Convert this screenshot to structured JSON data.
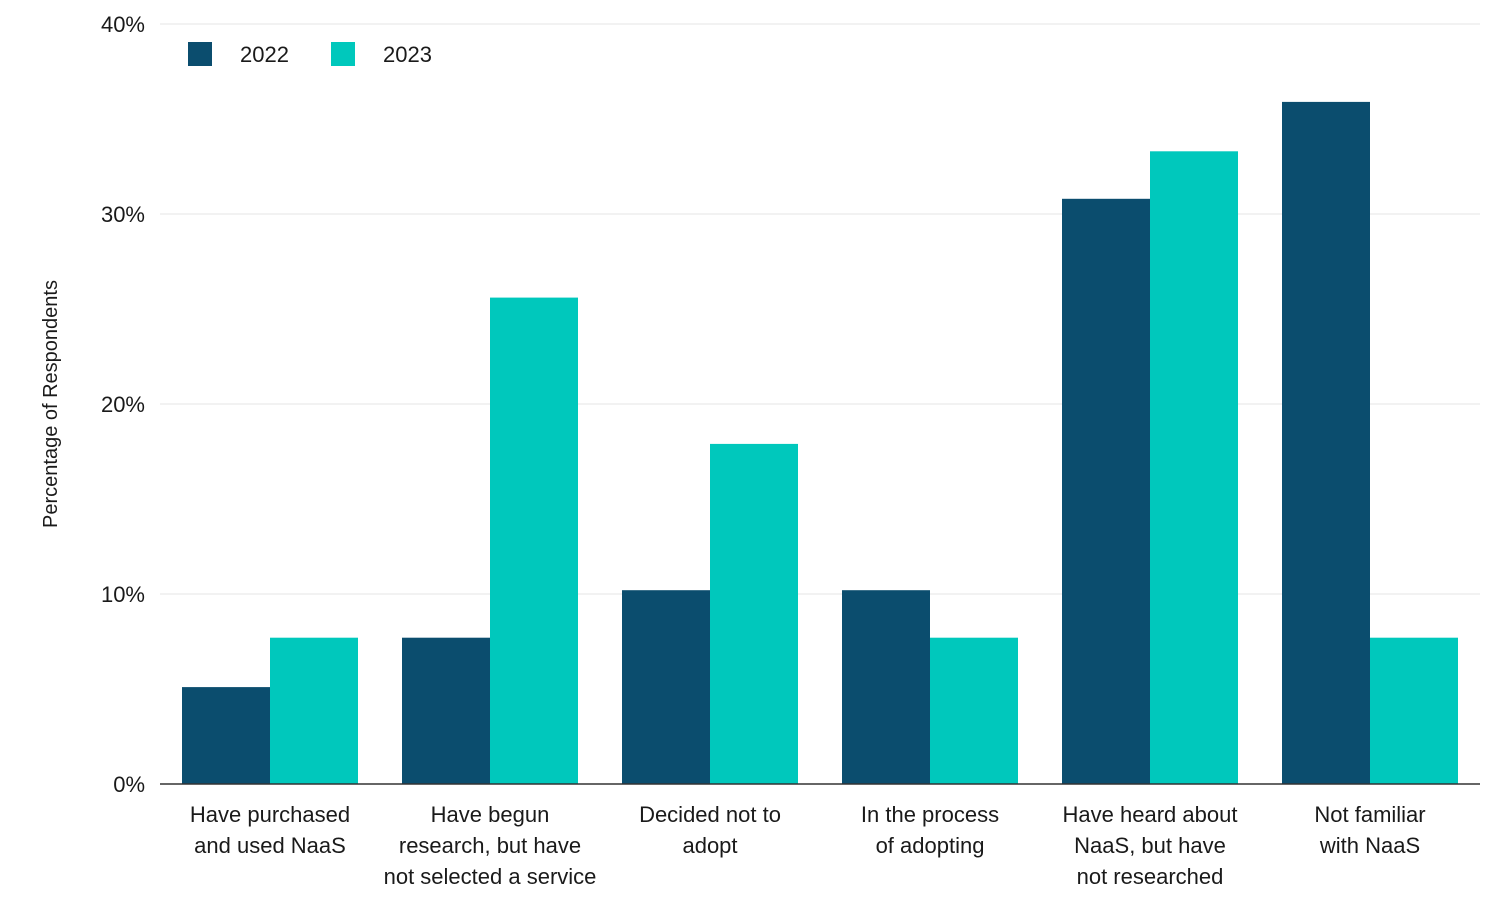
{
  "chart_data": {
    "type": "bar",
    "title": "",
    "xlabel": "",
    "ylabel": "Percentage of Respondents",
    "ylim": [
      0,
      40
    ],
    "yticks": [
      0,
      10,
      20,
      30,
      40
    ],
    "ytick_labels": [
      "0%",
      "10%",
      "20%",
      "30%",
      "40%"
    ],
    "grid": true,
    "legend_position": "top-left",
    "categories": [
      [
        "Have purchased",
        "and used NaaS"
      ],
      [
        "Have begun",
        "research, but have",
        "not selected a service"
      ],
      [
        "Decided not to",
        "adopt"
      ],
      [
        "In the process",
        "of adopting"
      ],
      [
        "Have heard about",
        "NaaS, but have",
        "not researched"
      ],
      [
        "Not familiar",
        "with NaaS"
      ]
    ],
    "series": [
      {
        "name": "2022",
        "color": "#0b4d6e",
        "values": [
          5.1,
          7.7,
          10.2,
          10.2,
          30.8,
          35.9
        ]
      },
      {
        "name": "2023",
        "color": "#00c8bc",
        "values": [
          7.7,
          25.6,
          17.9,
          7.7,
          33.3,
          7.7
        ]
      }
    ]
  }
}
